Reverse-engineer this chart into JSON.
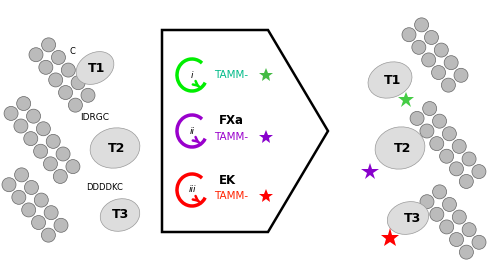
{
  "background_color": "#ffffff",
  "reactions": [
    {
      "roman": "i",
      "circle_color": "#00ee00",
      "enzyme": "",
      "tamm_color": "#00bb88",
      "star_color": "#44bb44"
    },
    {
      "roman": "ii",
      "circle_color": "#9900cc",
      "enzyme": "FXa",
      "tamm_color": "#9900cc",
      "star_color": "#8800cc"
    },
    {
      "roman": "iii",
      "circle_color": "#ff0000",
      "enzyme": "EK",
      "tamm_color": "#ff2200",
      "star_color": "#ff0000"
    }
  ],
  "star_colors_right": [
    "#44cc44",
    "#8800cc",
    "#ff0000"
  ],
  "bead_color": "#bbbbbb",
  "bead_edge_color": "#666666",
  "protein_blob_color": "#dddddd",
  "protein_blob_edge": "#999999"
}
